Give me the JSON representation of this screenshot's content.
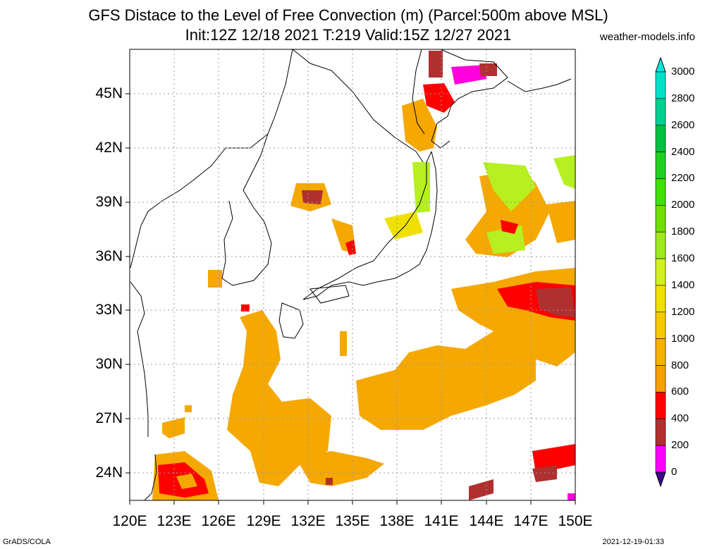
{
  "header": {
    "title_line1": "GFS Distace to the Level of Free Convection (m) (Parcel:500m above MSL)",
    "title_line2": "Init:12Z 12/18 2021 T:219 Valid:15Z 12/27 2021",
    "credit": "weather-models.info"
  },
  "map": {
    "lat_labels": [
      "45N",
      "42N",
      "39N",
      "36N",
      "33N",
      "30N",
      "27N",
      "24N"
    ],
    "lon_labels": [
      "120E",
      "123E",
      "126E",
      "129E",
      "132E",
      "135E",
      "138E",
      "141E",
      "144E",
      "147E",
      "150E"
    ],
    "colors": {
      "magenta": "#ff00dd",
      "brown": "#b03030",
      "red": "#ff0000",
      "orange": "#f5a800",
      "gold": "#f5c000",
      "yellow": "#f0e000",
      "yellowgreen": "#b6f020",
      "green": "#90e040",
      "coast": "#000000",
      "grid": "#9a9a9a"
    }
  },
  "colorbar": {
    "labels": [
      "3000",
      "2800",
      "2600",
      "2400",
      "2200",
      "2000",
      "1800",
      "1600",
      "1400",
      "1200",
      "1000",
      "800",
      "600",
      "400",
      "200",
      "0"
    ],
    "colors": [
      "#00e0c8",
      "#00d090",
      "#00c040",
      "#20d020",
      "#40e000",
      "#70e000",
      "#a0e820",
      "#d0f020",
      "#f0e000",
      "#f5c800",
      "#f5b000",
      "#f5a000",
      "#ff0000",
      "#b03030",
      "#ff00ff",
      "#400090"
    ],
    "top_arrow_color": "#00e8e0",
    "bottom_arrow_color": "#400090"
  },
  "footer": {
    "left": "GrADS/COLA",
    "right": "2021-12-19-01:33"
  }
}
